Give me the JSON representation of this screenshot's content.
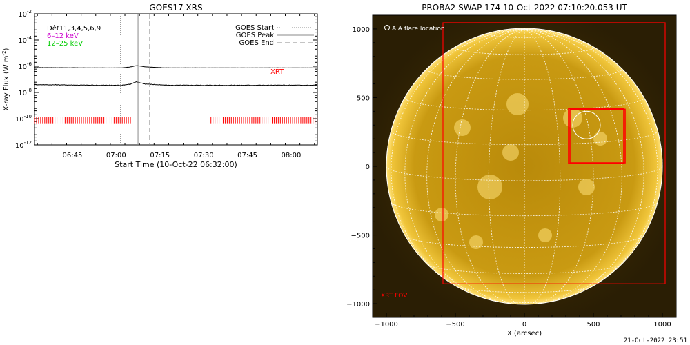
{
  "stamp": "21-Oct-2022 23:51",
  "chart_data": [
    {
      "type": "line",
      "title": "GOES17 XRS",
      "xlabel": "Start Time (10-Oct-22 06:32:00)",
      "ylabel": "X-ray Flux (W m",
      "ylabel_sup": "-2",
      "ylabel_end": ")",
      "y_scale": "log",
      "ylim_exp": [
        -12,
        -2
      ],
      "y_ticks_exp": [
        -12,
        -10,
        -8,
        -6,
        -4,
        -2
      ],
      "x_minutes_range": [
        0,
        97
      ],
      "x_ticks": [
        {
          "label": "06:45",
          "min": 13
        },
        {
          "label": "07:00",
          "min": 28
        },
        {
          "label": "07:15",
          "min": 43
        },
        {
          "label": "07:30",
          "min": 58
        },
        {
          "label": "07:45",
          "min": 73
        },
        {
          "label": "08:00",
          "min": 88
        }
      ],
      "energy_labels": [
        {
          "text": "Dêt11,3,4,5,6,9",
          "color": "#000000"
        },
        {
          "text": "6–12 keV",
          "color": "#cc00cc"
        },
        {
          "text": "12–25 keV",
          "color": "#00cc00"
        }
      ],
      "legend": [
        {
          "label": "GOES Start",
          "style": "dotted"
        },
        {
          "label": "GOES Peak",
          "style": "solid"
        },
        {
          "label": "GOES End",
          "style": "dashed"
        }
      ],
      "legend_position": "top-right",
      "xrt_label": "XRT",
      "goes_start_min": 29.5,
      "goes_peak_min": 35.5,
      "goes_end_min": 39.5,
      "series": [
        {
          "color": "#000000",
          "points": [
            [
              0,
              -6.1
            ],
            [
              20,
              -6.12
            ],
            [
              30,
              -6.12
            ],
            [
              33,
              -6.05
            ],
            [
              35,
              -5.95
            ],
            [
              38,
              -6.05
            ],
            [
              45,
              -6.12
            ],
            [
              97,
              -6.12
            ]
          ]
        },
        {
          "color": "#000000",
          "points": [
            [
              0,
              -7.4
            ],
            [
              20,
              -7.45
            ],
            [
              30,
              -7.45
            ],
            [
              33,
              -7.35
            ],
            [
              35,
              -7.2
            ],
            [
              38,
              -7.35
            ],
            [
              45,
              -7.45
            ],
            [
              97,
              -7.45
            ]
          ]
        }
      ],
      "xrt_coverage": [
        [
          0,
          33.5
        ],
        [
          60.5,
          97
        ]
      ],
      "xrt_color": "#ff0000"
    },
    {
      "type": "image",
      "title": "PROBA2 SWAP 174 10-Oct-2022 07:10:20.053 UT",
      "xlabel": "X (arcsec)",
      "xlim": [
        -1100,
        1100
      ],
      "ylim": [
        -1100,
        1100
      ],
      "ticks": [
        -1000,
        -500,
        0,
        500,
        1000
      ],
      "sun_radius_arcsec": 1000,
      "aia_label": "AIA flare location",
      "aia_circle": {
        "x": 450,
        "y": 300,
        "r": 100
      },
      "fov_boxes": [
        {
          "x0": 320,
          "x1": 720,
          "y0": 20,
          "y1": 420
        },
        {
          "x0": 330,
          "x1": 730,
          "y0": 25,
          "y1": 415
        }
      ],
      "xrt_fov": {
        "x0": -590,
        "x1": 1020,
        "y0": -855,
        "y1": 1045
      },
      "xrt_fov_label": "XRT FOV",
      "box_color": "#ff0000"
    }
  ]
}
